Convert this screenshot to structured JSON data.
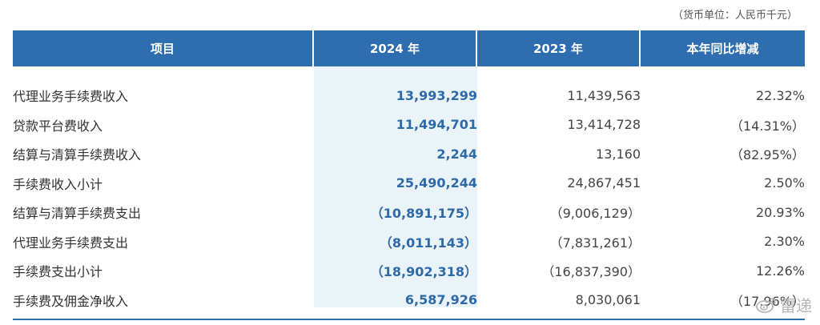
{
  "unit_note": "（货币单位：人民币千元）",
  "headers": {
    "item": "项目",
    "y2024": "2024 年",
    "y2023": "2023 年",
    "change": "本年同比增减"
  },
  "rows": [
    {
      "label": "代理业务手续费收入",
      "v2024": "13,993,299",
      "v2023": "11,439,563",
      "change": "22.32%"
    },
    {
      "label": "贷款平台费收入",
      "v2024": "11,494,701",
      "v2023": "13,414,728",
      "change": "（14.31%）"
    },
    {
      "label": "结算与清算手续费收入",
      "v2024": "2,244",
      "v2023": "13,160",
      "change": "（82.95%）"
    },
    {
      "label": "手续费收入小计",
      "v2024": "25,490,244",
      "v2023": "24,867,451",
      "change": "2.50%"
    },
    {
      "label": "结算与清算手续费支出",
      "v2024": "（10,891,175）",
      "v2023": "（9,006,129）",
      "change": "20.93%"
    },
    {
      "label": "代理业务手续费支出",
      "v2024": "（8,011,143）",
      "v2023": "（7,831,261）",
      "change": "2.30%"
    },
    {
      "label": "手续费支出小计",
      "v2024": "（18,902,318）",
      "v2023": "（16,837,390）",
      "change": "12.26%"
    },
    {
      "label": "手续费及佣金净收入",
      "v2024": "6,587,926",
      "v2023": "8,030,061",
      "change": "（17.96%）"
    }
  ],
  "watermark": {
    "text": "雷递",
    "icon": "weibo-logo-icon"
  },
  "colors": {
    "header_bg": "#2e6db0",
    "highlight_col": "#eaf3f8",
    "value_2024": "#2e6aa8"
  }
}
